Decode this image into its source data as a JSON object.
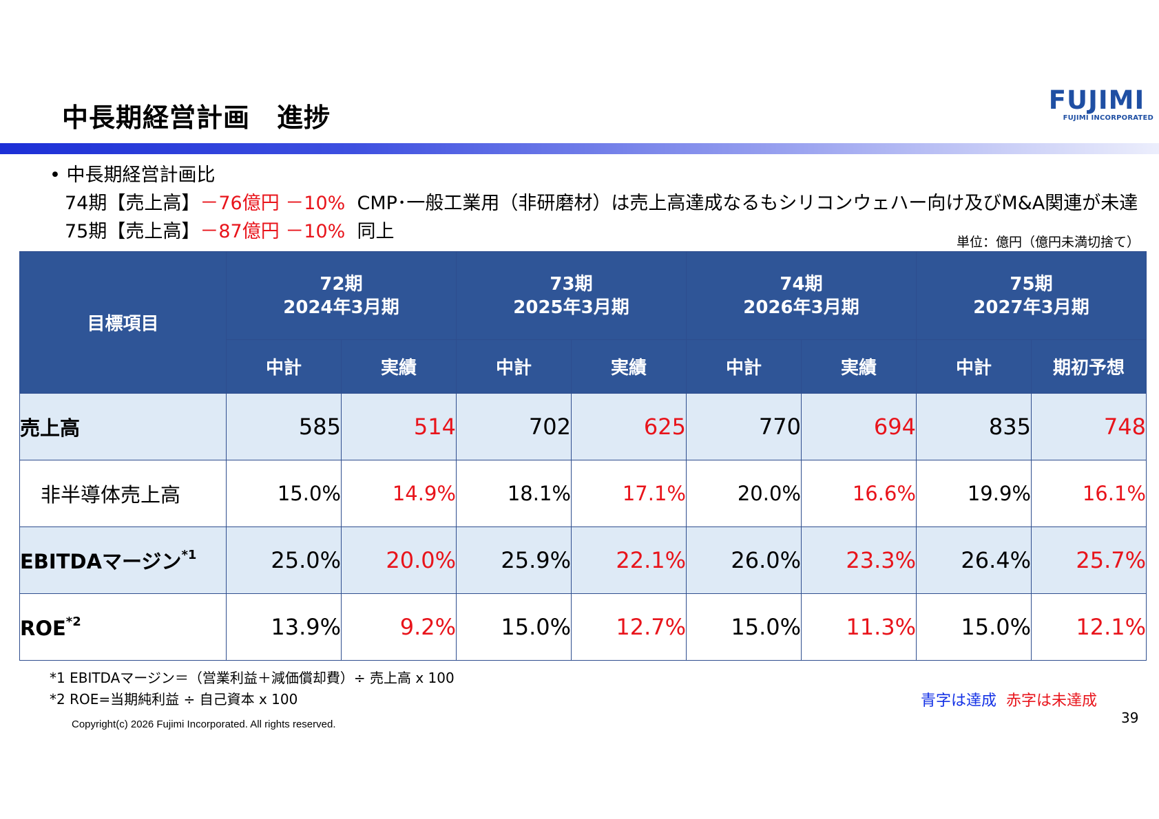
{
  "header": {
    "title": "中長期経営計画　進捗",
    "logo_text": "FUJIMI",
    "logo_sub": "FUJIMI INCORPORATED"
  },
  "bullets": {
    "heading": "中長期経営計画比",
    "line1": {
      "prefix": "74期【売上高】",
      "red": "－76億円 －10%",
      "rest": "  CMP･一般工業用（非研磨材）は売上高達成なるもシリコンウェハー向け及びM&A関連が未達"
    },
    "line2": {
      "prefix": "75期【売上高】",
      "red": "－87億円 －10%",
      "rest": "  同上"
    }
  },
  "unit_note": "単位：億円（億円未満切捨て）",
  "table": {
    "corner": "目標項目",
    "periods": [
      {
        "term": "72期",
        "fy": "2024年3月期",
        "sub": [
          "中計",
          "実績"
        ]
      },
      {
        "term": "73期",
        "fy": "2025年3月期",
        "sub": [
          "中計",
          "実績"
        ]
      },
      {
        "term": "74期",
        "fy": "2026年3月期",
        "sub": [
          "中計",
          "実績"
        ]
      },
      {
        "term": "75期",
        "fy": "2027年3月期",
        "sub": [
          "中計",
          "期初予想"
        ]
      }
    ],
    "rows": [
      {
        "label": "売上高",
        "sup": "",
        "values": [
          "585",
          "514",
          "702",
          "625",
          "770",
          "694",
          "835",
          "748"
        ]
      },
      {
        "label": "非半導体売上高",
        "sup": "",
        "values": [
          "15.0%",
          "14.9%",
          "18.1%",
          "17.1%",
          "20.0%",
          "16.6%",
          "19.9%",
          "16.1%"
        ]
      },
      {
        "label": "EBITDAマージン",
        "sup": "*1",
        "values": [
          "25.0%",
          "20.0%",
          "25.9%",
          "22.1%",
          "26.0%",
          "23.3%",
          "26.4%",
          "25.7%"
        ]
      },
      {
        "label": "ROE",
        "sup": "*2",
        "values": [
          "13.9%",
          "9.2%",
          "15.0%",
          "12.7%",
          "15.0%",
          "11.3%",
          "15.0%",
          "12.1%"
        ]
      }
    ]
  },
  "notes": [
    "*1 EBITDAマージン＝（営業利益＋減価償却費）÷ 売上高 x 100",
    "*2 ROE=当期純利益 ÷ 自己資本 x 100"
  ],
  "legend": {
    "blue": "青字は達成",
    "red": "赤字は未達成"
  },
  "page_number": "39",
  "copyright": "Copyright(c) 2026 Fujimi Incorporated. All rights reserved.",
  "colors": {
    "header_bg": "#2f5597",
    "row_shade": "#deeaf6",
    "miss_red": "#e8141b",
    "achieved_blue": "#1432e6"
  }
}
